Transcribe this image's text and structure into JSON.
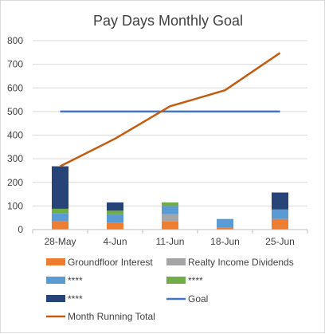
{
  "chart_data": {
    "type": "bar",
    "title": "Pay Days Monthly Goal",
    "categories": [
      "28-May",
      "4-Jun",
      "11-Jun",
      "18-Jun",
      "25-Jun"
    ],
    "ylim": [
      0,
      800
    ],
    "yticks": [
      0,
      100,
      200,
      300,
      400,
      500,
      600,
      700,
      800
    ],
    "grid": true,
    "legend_position": "bottom",
    "stacked_series": [
      {
        "name": "Groundfloor Interest",
        "color": "#ed7d31",
        "values": [
          35,
          30,
          35,
          10,
          45
        ]
      },
      {
        "name": "Realty Income Dividends",
        "color": "#a5a5a5",
        "values": [
          0,
          0,
          30,
          0,
          0
        ]
      },
      {
        "name": "****",
        "color": "#5b9bd5",
        "values": [
          35,
          35,
          35,
          35,
          40
        ]
      },
      {
        "name": "****",
        "color": "#70ad47",
        "values": [
          18,
          15,
          15,
          0,
          0
        ]
      },
      {
        "name": "****",
        "color": "#264478",
        "values": [
          180,
          35,
          0,
          0,
          72
        ]
      }
    ],
    "line_series": [
      {
        "name": "Goal",
        "color": "#4472c4",
        "values": [
          500,
          500,
          500,
          500,
          500
        ]
      },
      {
        "name": "Month Running Total",
        "color": "#c55a11",
        "values": [
          268,
          385,
          522,
          590,
          748
        ]
      }
    ],
    "legend_order": [
      "Groundfloor Interest",
      "Realty Income Dividends",
      "****",
      "****",
      "****",
      "Goal",
      "Month Running Total"
    ]
  }
}
